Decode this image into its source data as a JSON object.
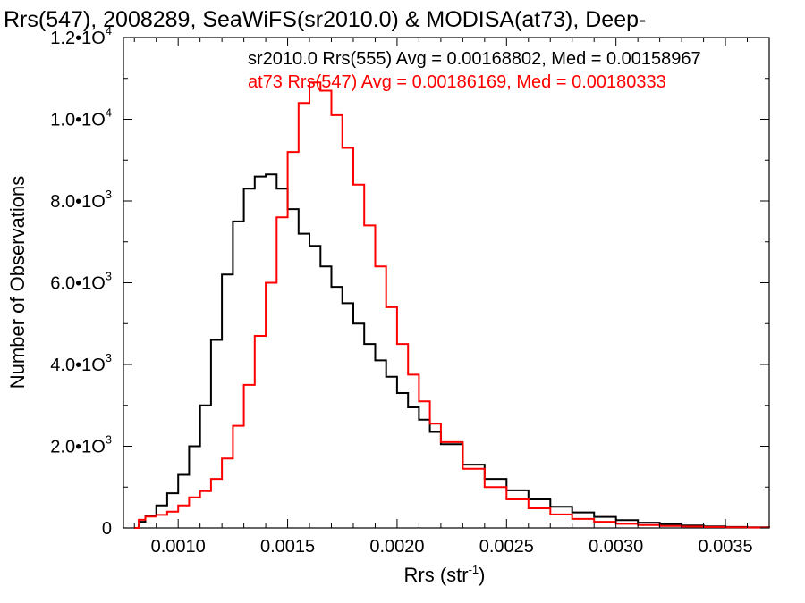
{
  "chart_data": {
    "type": "line",
    "title": "Rrs(547), 2008289, SeaWiFS(sr2010.0) & MODISA(at73), Deep-",
    "xlabel": "Rrs (str",
    "xlabel_sup": "-1",
    "xlabel_close": ")",
    "ylabel": "Number of Observations",
    "xlim": [
      0.00075,
      0.0037
    ],
    "ylim": [
      0,
      12000
    ],
    "x_ticks": [
      0.001,
      0.0015,
      0.002,
      0.0025,
      0.003,
      0.0035
    ],
    "x_tick_labels": [
      "0.0010",
      "0.0015",
      "0.0020",
      "0.0025",
      "0.0030",
      "0.0035"
    ],
    "y_ticks": [
      0,
      2000,
      4000,
      6000,
      8000,
      10000,
      12000
    ],
    "y_tick_labels": [
      {
        "base": "0",
        "exp": ""
      },
      {
        "base": "2.0•1O",
        "exp": "3"
      },
      {
        "base": "4.0•1O",
        "exp": "3"
      },
      {
        "base": "6.0•1O",
        "exp": "3"
      },
      {
        "base": "8.0•1O",
        "exp": "3"
      },
      {
        "base": "1.0•1O",
        "exp": "4"
      },
      {
        "base": "1.2•1O",
        "exp": "4"
      }
    ],
    "grid": false,
    "legend_position": "top-right",
    "series": [
      {
        "name": "sr2010.0 Rrs(555) Avg = 0.00168802, Med = 0.00158967",
        "color": "#000000",
        "x": [
          0.0008,
          0.00082,
          0.00085,
          0.0009,
          0.00095,
          0.001,
          0.00105,
          0.0011,
          0.00115,
          0.0012,
          0.00125,
          0.0013,
          0.00135,
          0.0014,
          0.00145,
          0.0015,
          0.00155,
          0.0016,
          0.00165,
          0.0017,
          0.00175,
          0.0018,
          0.00185,
          0.0019,
          0.00195,
          0.002,
          0.00205,
          0.0021,
          0.00215,
          0.0022,
          0.0023,
          0.0024,
          0.0025,
          0.0026,
          0.0027,
          0.0028,
          0.0029,
          0.003,
          0.0031,
          0.0032,
          0.0033,
          0.0034,
          0.0035,
          0.0036,
          0.0037
        ],
        "y": [
          0,
          150,
          300,
          550,
          850,
          1300,
          2000,
          3000,
          4600,
          6200,
          7500,
          8300,
          8600,
          8650,
          8300,
          7800,
          7200,
          6900,
          6400,
          5900,
          5500,
          5000,
          4500,
          4100,
          3700,
          3300,
          2950,
          2650,
          2350,
          2050,
          1550,
          1200,
          920,
          700,
          520,
          380,
          270,
          190,
          130,
          90,
          60,
          40,
          25,
          15,
          10
        ]
      },
      {
        "name": "at73 Rrs(547) Avg = 0.00186169, Med = 0.00180333",
        "color": "#ff0000",
        "x": [
          0.0008,
          0.00082,
          0.00085,
          0.0009,
          0.00095,
          0.001,
          0.00105,
          0.0011,
          0.00115,
          0.0012,
          0.00125,
          0.0013,
          0.00135,
          0.0014,
          0.00145,
          0.0015,
          0.00155,
          0.0016,
          0.00165,
          0.0017,
          0.00175,
          0.0018,
          0.00185,
          0.0019,
          0.00195,
          0.002,
          0.00205,
          0.0021,
          0.00215,
          0.0022,
          0.0023,
          0.0024,
          0.0025,
          0.0026,
          0.0027,
          0.0028,
          0.0029,
          0.003,
          0.0031,
          0.0032,
          0.0033,
          0.0034,
          0.0035,
          0.0036,
          0.0037
        ],
        "y": [
          0,
          200,
          280,
          320,
          400,
          550,
          750,
          900,
          1200,
          1700,
          2500,
          3500,
          4700,
          6000,
          7600,
          9200,
          10400,
          10900,
          10700,
          10100,
          9300,
          8400,
          7400,
          6400,
          5400,
          4500,
          3750,
          3100,
          2550,
          2100,
          1450,
          1000,
          700,
          480,
          330,
          220,
          150,
          100,
          70,
          50,
          35,
          25,
          18,
          12,
          8
        ]
      }
    ]
  }
}
